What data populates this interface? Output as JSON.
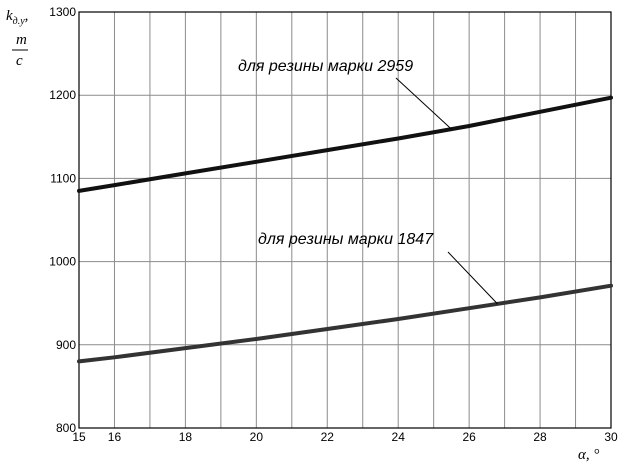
{
  "chart_data": {
    "type": "line",
    "title": "",
    "xlabel": "α, °",
    "ylabel_main": "k",
    "ylabel_sub": "д.у",
    "ylabel_suffix": ",",
    "ylabel_unit_num": "m",
    "ylabel_unit_den": "c",
    "xlim": [
      15,
      30
    ],
    "ylim": [
      800,
      1300
    ],
    "x_ticks": [
      15,
      16,
      18,
      20,
      22,
      24,
      26,
      28,
      30
    ],
    "y_ticks": [
      800,
      900,
      1000,
      1100,
      1200,
      1300
    ],
    "grid": true,
    "series": [
      {
        "name": "для резины марки 2959",
        "color": "#111111",
        "x": [
          15,
          16,
          18,
          20,
          22,
          24,
          26,
          28,
          30
        ],
        "y": [
          1085,
          1092,
          1106,
          1120,
          1134,
          1148,
          1163,
          1180,
          1197
        ]
      },
      {
        "name": "для резины марки 1847",
        "color": "#333333",
        "x": [
          15,
          16,
          18,
          20,
          22,
          24,
          26,
          28,
          30
        ],
        "y": [
          880,
          885,
          896,
          907,
          919,
          931,
          944,
          957,
          971
        ]
      }
    ]
  }
}
